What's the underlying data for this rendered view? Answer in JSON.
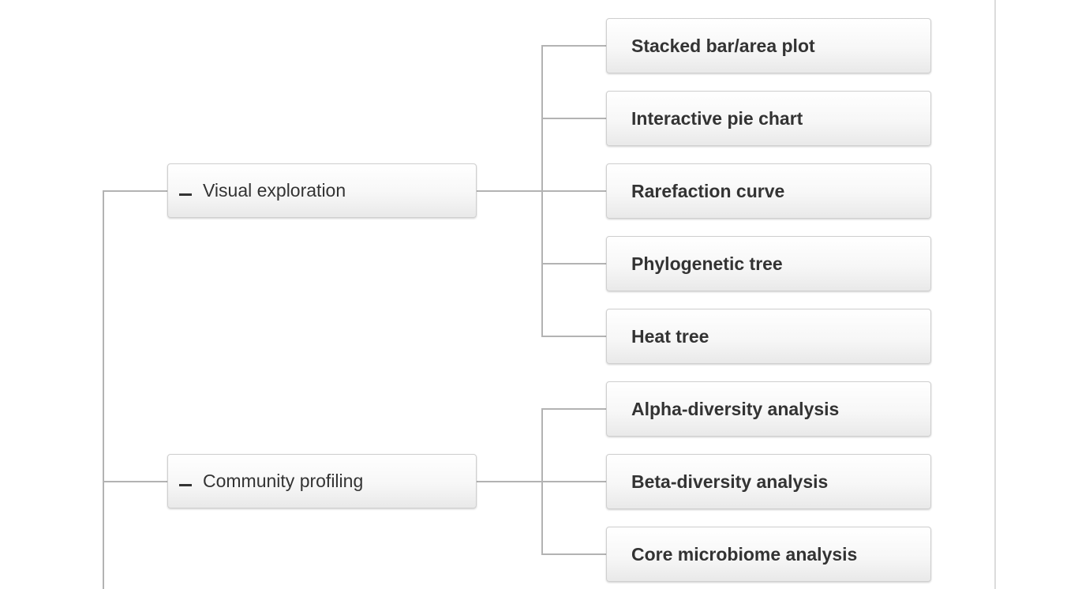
{
  "tree": {
    "groups": [
      {
        "label": "Visual exploration",
        "toggle": "collapse",
        "children": [
          "Stacked bar/area plot",
          "Interactive pie chart",
          "Rarefaction curve",
          "Phylogenetic tree",
          "Heat tree"
        ]
      },
      {
        "label": "Community profiling",
        "toggle": "collapse",
        "children": [
          "Alpha-diversity analysis",
          "Beta-diversity analysis",
          "Core microbiome analysis"
        ]
      }
    ]
  },
  "colors": {
    "connector": "#b3b3b3",
    "node_border": "#cfcfcf",
    "text": "#333333"
  }
}
